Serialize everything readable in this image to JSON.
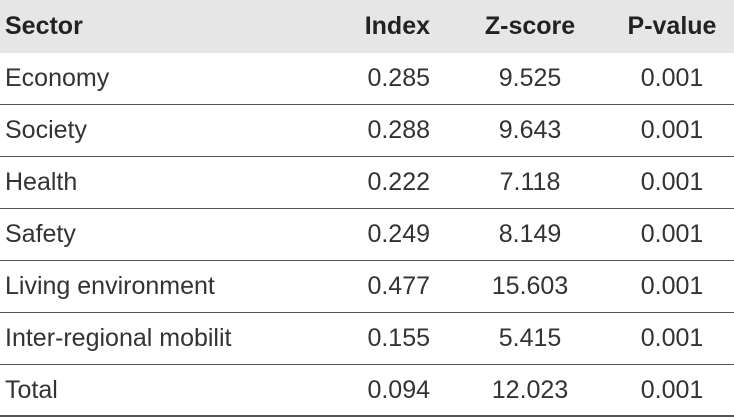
{
  "table": {
    "columns": [
      "Sector",
      "Index",
      "Z-score",
      "P-value"
    ],
    "rows": [
      {
        "sector": "Economy",
        "index": "0.285",
        "z": "9.525",
        "p": "0.001"
      },
      {
        "sector": "Society",
        "index": "0.288",
        "z": "9.643",
        "p": "0.001"
      },
      {
        "sector": "Health",
        "index": "0.222",
        "z": "7.118",
        "p": "0.001"
      },
      {
        "sector": "Safety",
        "index": "0.249",
        "z": "8.149",
        "p": "0.001"
      },
      {
        "sector": "Living environment",
        "index": "0.477",
        "z": "15.603",
        "p": "0.001"
      },
      {
        "sector": "Inter-regional mobilit",
        "index": "0.155",
        "z": "5.415",
        "p": "0.001"
      },
      {
        "sector": "Total",
        "index": "0.094",
        "z": "12.023",
        "p": "0.001"
      }
    ]
  }
}
